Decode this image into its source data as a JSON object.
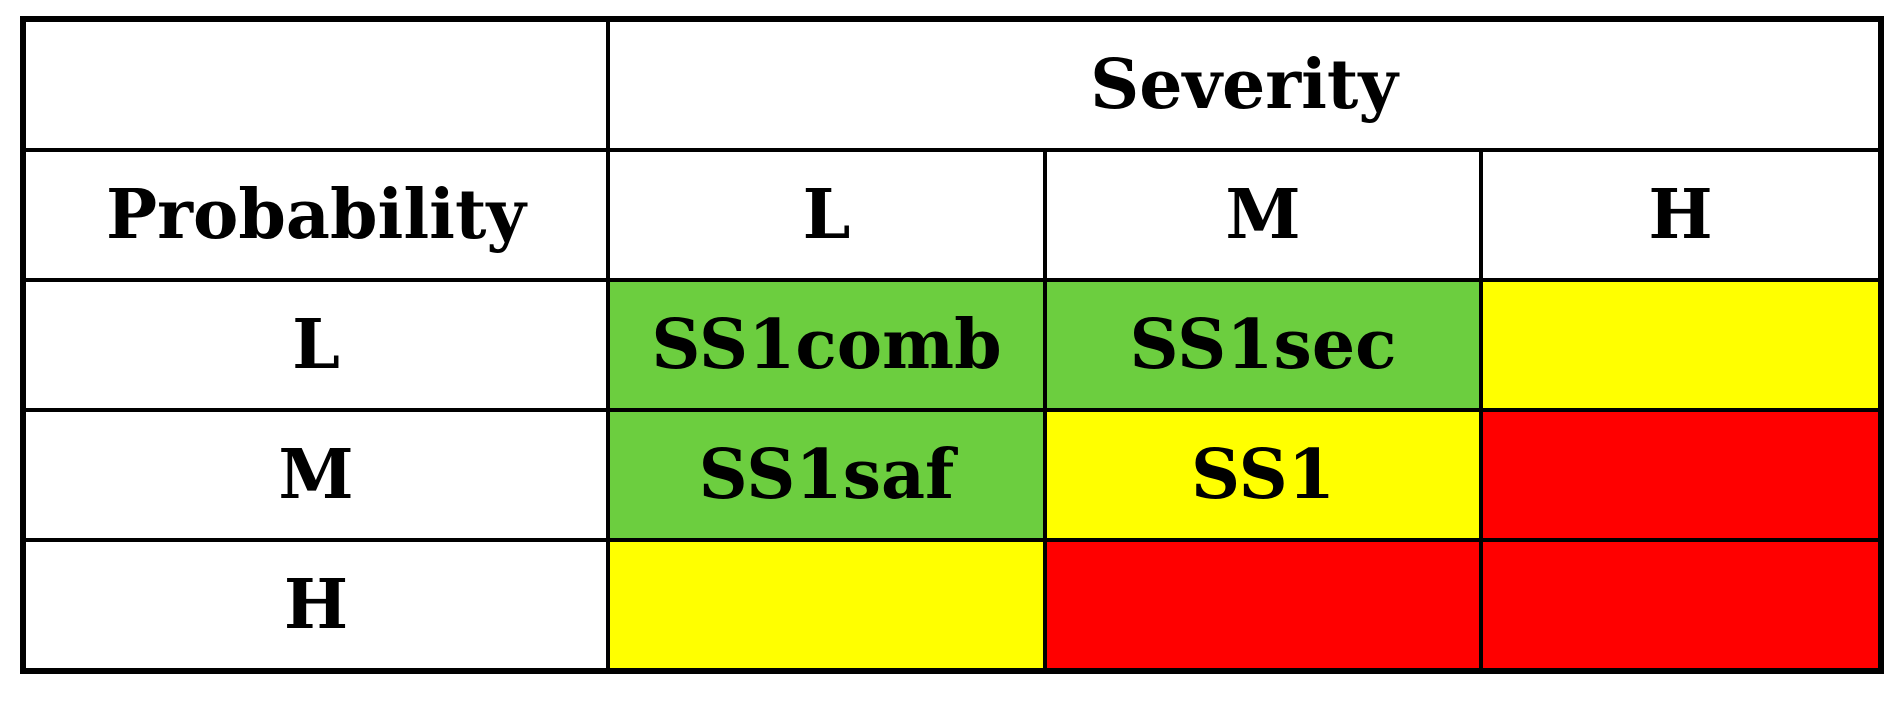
{
  "figure": {
    "kind": "risk-matrix",
    "corner_label": "",
    "column_group_label": "Severity",
    "row_group_label": "Probability",
    "column_headers": [
      "L",
      "M",
      "H"
    ],
    "row_headers": [
      "L",
      "M",
      "H"
    ],
    "cells": [
      [
        {
          "label": "SS1comb",
          "bg": "#6CCE3F"
        },
        {
          "label": "SS1sec",
          "bg": "#6CCE3F"
        },
        {
          "label": "",
          "bg": "#FFFF00"
        }
      ],
      [
        {
          "label": "SS1saf",
          "bg": "#6CCE3F"
        },
        {
          "label": "SS1",
          "bg": "#FFFF00"
        },
        {
          "label": "",
          "bg": "#FF0000"
        }
      ],
      [
        {
          "label": "",
          "bg": "#FFFF00"
        },
        {
          "label": "",
          "bg": "#FF0000"
        },
        {
          "label": "",
          "bg": "#FF0000"
        }
      ]
    ],
    "colors": {
      "green": "#6CCE3F",
      "yellow": "#FFFF00",
      "red": "#FF0000",
      "border": "#000000",
      "text": "#000000",
      "page_background": "#FFFFFF"
    }
  },
  "chart_data": {
    "type": "table",
    "x_axis_label": "Severity",
    "y_axis_label": "Probability",
    "columns": [
      "L",
      "M",
      "H"
    ],
    "rows": [
      "L",
      "M",
      "H"
    ],
    "cell_text": [
      [
        "SS1comb",
        "SS1sec",
        ""
      ],
      [
        "SS1saf",
        "SS1",
        ""
      ],
      [
        "",
        "",
        ""
      ]
    ],
    "cell_colors": [
      [
        "green",
        "green",
        "yellow"
      ],
      [
        "green",
        "yellow",
        "red"
      ],
      [
        "yellow",
        "red",
        "red"
      ]
    ],
    "legend_position": "none",
    "grid": true
  }
}
